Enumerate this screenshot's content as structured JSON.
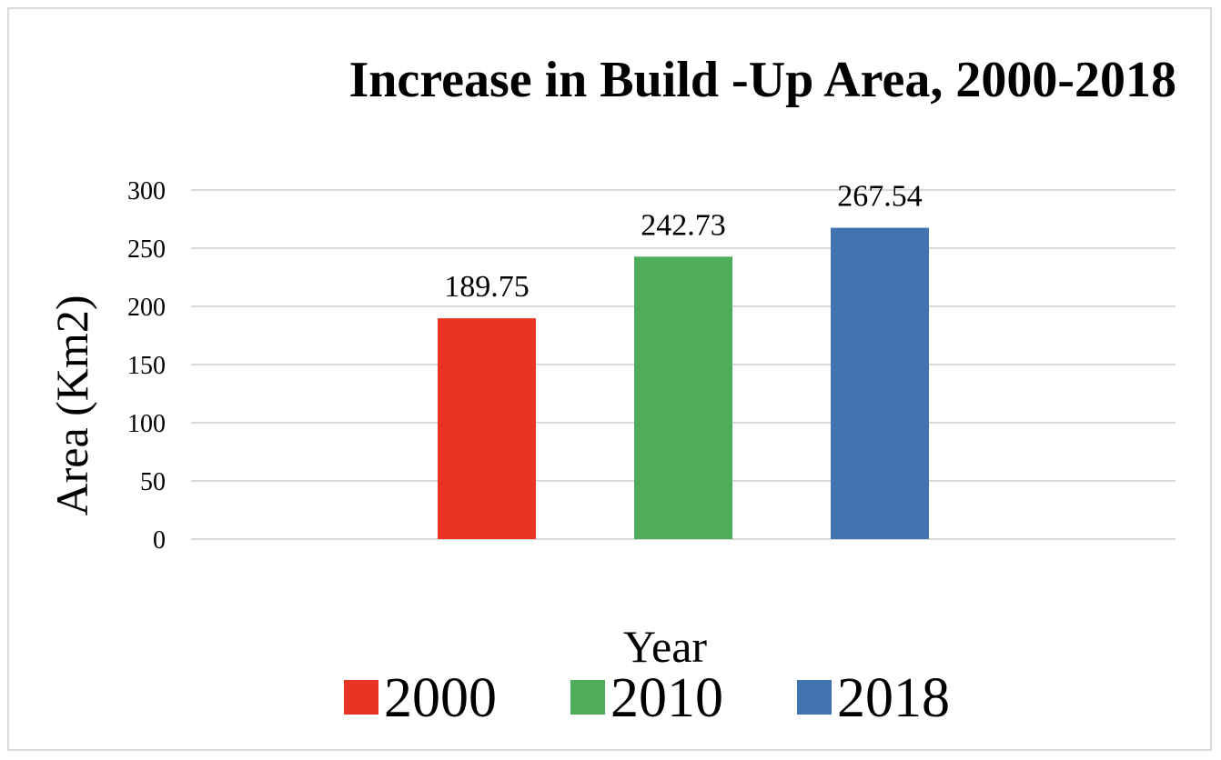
{
  "chart_data": {
    "type": "bar",
    "title": "Increase in Build -Up Area, 2000-2018",
    "xlabel": "Year",
    "ylabel": "Area (Km2)",
    "ylim": [
      0,
      300
    ],
    "yticks": [
      "0",
      "50",
      "100",
      "150",
      "200",
      "250",
      "300"
    ],
    "grid": true,
    "legend_position": "bottom",
    "series": [
      {
        "name": "2000",
        "value": 189.75,
        "label": "189.75",
        "color": "#e93323"
      },
      {
        "name": "2010",
        "value": 242.73,
        "label": "242.73",
        "color": "#4eac5b"
      },
      {
        "name": "2018",
        "value": 267.54,
        "label": "267.54",
        "color": "#4273b0"
      }
    ]
  }
}
